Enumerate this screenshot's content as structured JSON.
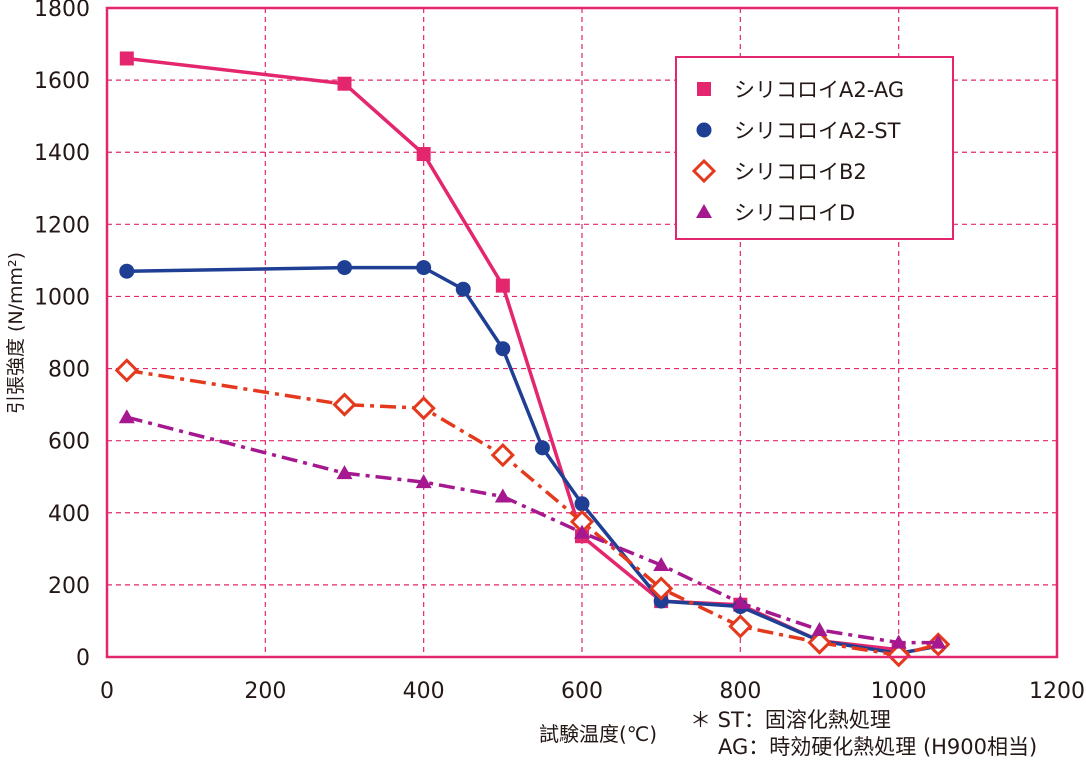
{
  "chart_data": {
    "type": "line",
    "title": "",
    "xlabel": "試験温度(℃)",
    "ylabel": "引張強度 (N/mm²)",
    "xlim": [
      0,
      1200
    ],
    "ylim": [
      0,
      1800
    ],
    "xticks": [
      0,
      200,
      400,
      600,
      800,
      1000,
      1200
    ],
    "yticks": [
      0,
      200,
      400,
      600,
      800,
      1000,
      1200,
      1400,
      1600,
      1800
    ],
    "grid": true,
    "legend_position": "top-right",
    "series": [
      {
        "name": "シリコロイA2-AG",
        "marker": "square",
        "line": "solid",
        "color": "#e4266e",
        "x": [
          25,
          300,
          400,
          500,
          600,
          700,
          800,
          900,
          1000
        ],
        "y": [
          1660,
          1590,
          1395,
          1030,
          335,
          155,
          145,
          45,
          20
        ]
      },
      {
        "name": "シリコロイA2-ST",
        "marker": "circle",
        "line": "solid",
        "color": "#1f3f95",
        "x": [
          25,
          300,
          400,
          450,
          500,
          550,
          600,
          700,
          800,
          900,
          1000,
          1050
        ],
        "y": [
          1070,
          1080,
          1080,
          1020,
          855,
          580,
          425,
          155,
          140,
          45,
          10,
          30
        ]
      },
      {
        "name": "シリコロイB2",
        "marker": "diamond-open",
        "line": "dashdot",
        "color": "#e5391e",
        "x": [
          25,
          300,
          400,
          500,
          600,
          700,
          800,
          900,
          1000,
          1050
        ],
        "y": [
          795,
          700,
          690,
          560,
          375,
          190,
          85,
          40,
          5,
          35
        ]
      },
      {
        "name": "シリコロイD",
        "marker": "triangle",
        "line": "dashdot",
        "color": "#a5188f",
        "x": [
          25,
          300,
          400,
          500,
          600,
          700,
          800,
          900,
          1000,
          1050
        ],
        "y": [
          665,
          510,
          485,
          445,
          345,
          255,
          150,
          75,
          40,
          40
        ]
      }
    ]
  },
  "notes": {
    "line1": "＊ ST：固溶化熱処理",
    "line2": "AG：時効硬化熱処理 (H900相当)"
  }
}
